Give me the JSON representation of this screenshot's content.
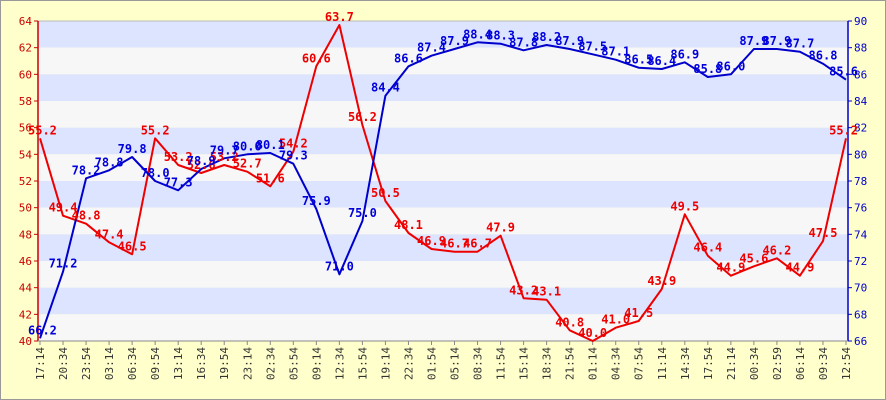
{
  "chart_data": {
    "type": "line",
    "title": "",
    "xlabel": "",
    "ylabel": "",
    "grid": "horizontal alternating bands",
    "legend": "none",
    "x": [
      "17:14",
      "20:34",
      "23:54",
      "03:14",
      "06:34",
      "09:54",
      "13:14",
      "16:34",
      "19:54",
      "23:14",
      "02:34",
      "05:54",
      "09:14",
      "12:34",
      "15:54",
      "19:14",
      "22:34",
      "01:54",
      "05:14",
      "08:34",
      "11:54",
      "15:14",
      "18:34",
      "21:54",
      "01:14",
      "04:34",
      "07:54",
      "11:14",
      "14:34",
      "17:54",
      "21:14",
      "00:34",
      "02:59",
      "06:14",
      "09:34",
      "12:54"
    ],
    "y_left": {
      "range": [
        40,
        64
      ],
      "ticks": [
        "40",
        "42",
        "44",
        "46",
        "48",
        "50",
        "52",
        "54",
        "56",
        "58",
        "60",
        "62",
        "64"
      ],
      "color": "#cc0000"
    },
    "y_right": {
      "range": [
        66,
        90
      ],
      "ticks": [
        "66",
        "68",
        "70",
        "72",
        "74",
        "76",
        "78",
        "80",
        "82",
        "84",
        "86",
        "88",
        "90"
      ],
      "color": "#0000cc"
    },
    "series": [
      {
        "axis": "left",
        "color": "#ee0000",
        "values": [
          55.2,
          49.4,
          48.8,
          47.4,
          46.5,
          55.2,
          53.2,
          52.6,
          53.2,
          52.7,
          51.6,
          54.2,
          60.6,
          63.7,
          56.2,
          50.5,
          48.1,
          46.9,
          46.7,
          46.7,
          47.9,
          43.2,
          43.1,
          40.8,
          40.0,
          41.0,
          41.5,
          43.9,
          49.5,
          46.4,
          44.9,
          45.6,
          46.2,
          44.9,
          47.5,
          55.2
        ],
        "labels": [
          "55.2",
          "49.4",
          "48.8",
          "47.4",
          "46.5",
          "55.2",
          "53.2",
          "52.6",
          "53.2",
          "52.7",
          "51.6",
          "54.2",
          "60.6",
          "63.7",
          "56.2",
          "50.5",
          "48.1",
          "46.9",
          "46.7",
          "46.7",
          "47.9",
          "43.2",
          "43.1",
          "40.8",
          "40.0",
          "41.0",
          "41.5",
          "43.9",
          "49.5",
          "46.4",
          "44.9",
          "45.6",
          "46.2",
          "44.9",
          "47.5",
          "55.2"
        ]
      },
      {
        "axis": "right",
        "color": "#0000cc",
        "values": [
          66.2,
          71.2,
          78.2,
          78.8,
          79.8,
          78.0,
          77.3,
          78.9,
          79.7,
          80.0,
          80.1,
          79.3,
          75.9,
          71.0,
          75.0,
          84.4,
          86.6,
          87.4,
          87.9,
          88.4,
          88.3,
          87.8,
          88.2,
          87.9,
          87.5,
          87.1,
          86.5,
          86.4,
          86.9,
          85.8,
          86.0,
          87.9,
          87.9,
          87.7,
          86.8,
          85.6
        ],
        "labels": [
          "66.2",
          "71.2",
          "78.2",
          "78.8",
          "79.8",
          "78.0",
          "77.3",
          "78.9",
          "79.7",
          "80.0",
          "80.1",
          "79.3",
          "75.9",
          "71.0",
          "75.0",
          "84.4",
          "86.6",
          "87.4",
          "87.9",
          "88.4",
          "88.3",
          "87.8",
          "88.2",
          "87.9",
          "87.5",
          "87.1",
          "86.5",
          "86.4",
          "86.9",
          "85.8",
          "86.0",
          "87.9",
          "87.9",
          "87.7",
          "86.8",
          "85.6"
        ]
      }
    ]
  }
}
